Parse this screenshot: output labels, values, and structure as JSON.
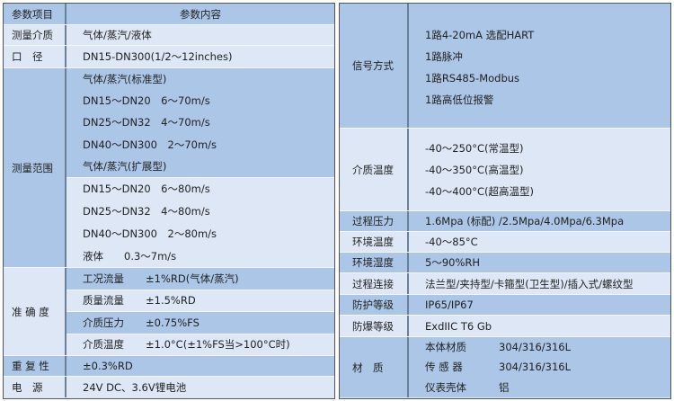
{
  "left": {
    "header": {
      "item": "参数项目",
      "content": "参数内容"
    },
    "medium": {
      "label": "测量介质",
      "value": "气体/蒸汽/液体"
    },
    "bore": {
      "label": "口　径",
      "value": "DN15-DN300(1/2～12inches)"
    },
    "range": {
      "label": "测量范围",
      "standard": [
        "气体/蒸汽(标准型)",
        "DN15～DN20　6～70m/s",
        "DN25～DN32　4～70m/s",
        "DN40～DN300　2～70m/s",
        "气体/蒸汽(扩展型)"
      ],
      "extended": [
        "DN15～DN20　6～80m/s",
        "DN25～DN32　4～80m/s",
        "DN40～DN300　2～80m/s",
        "液体　　0.3～7m/s"
      ]
    },
    "accuracy": {
      "label": "准 确 度",
      "rows": [
        {
          "k": "工况流量",
          "v": "±1%RD(气体/蒸汽)"
        },
        {
          "k": "质量流量",
          "v": "±1.5%RD"
        },
        {
          "k": "介质压力",
          "v": "±0.75%FS"
        },
        {
          "k": "介质温度",
          "v": "±1.0°C(±1%FS当>100°C时)"
        }
      ]
    },
    "repeat": {
      "label": "重 复 性",
      "value": "±0.3%RD"
    },
    "power": {
      "label": "电　源",
      "value": "24V DC、3.6V锂电池"
    }
  },
  "right": {
    "signal": {
      "label": "信号方式",
      "lines": [
        "1路4-20mA 选配HART",
        "1路脉冲",
        "1路RS485-Modbus",
        "1路高低位报警"
      ]
    },
    "medium_temp": {
      "label": "介质温度",
      "lines": [
        "-40～250°C(常温型)",
        "-40～350°C(高温型)",
        "-40～400°C(超高温型)"
      ]
    },
    "pressure": {
      "label": "过程压力",
      "value": "1.6Mpa (标配) /2.5Mpa/4.0Mpa/6.3Mpa"
    },
    "env_temp": {
      "label": "环境温度",
      "value": "-40～85°C"
    },
    "env_hum": {
      "label": "环境湿度",
      "value": "5～90%RH"
    },
    "connection": {
      "label": "过程连接",
      "value": "法兰型/夹持型/卡箍型(卫生型)/插入式/螺纹型"
    },
    "protection": {
      "label": "防护等级",
      "value": "IP65/IP67"
    },
    "explosion": {
      "label": "防爆等级",
      "value": "ExdIIC T6 Gb"
    },
    "material": {
      "label": "材　质",
      "rows": [
        {
          "k": "本体材质",
          "v": "304/316/316L"
        },
        {
          "k": "传 感 器",
          "v": "304/316/316L"
        },
        {
          "k": "仪表壳体",
          "v": "铝"
        }
      ]
    }
  },
  "colors": {
    "dark_row": "#abc6e6",
    "light_row": "#dde7f5",
    "border": "#555555"
  }
}
